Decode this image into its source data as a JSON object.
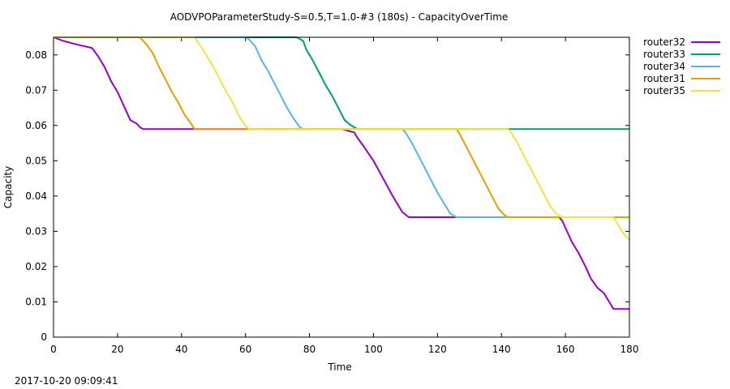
{
  "timestamp": "2017-10-20 09:09:41",
  "chart_data": {
    "type": "line",
    "title": "AODVPOParameterStudy-S=0.5,T=1.0-#3 (180s) - CapacityOverTime",
    "xlabel": "Time",
    "ylabel": "Capacity",
    "xlim": [
      0,
      180
    ],
    "ylim": [
      0,
      0.085
    ],
    "xticks": [
      0,
      20,
      40,
      60,
      80,
      100,
      120,
      140,
      160,
      180
    ],
    "xtick_labels": [
      "0",
      "20",
      "40",
      "60",
      "80",
      "100",
      "120",
      "140",
      "160",
      "180"
    ],
    "yticks": [
      0,
      0.01,
      0.02,
      0.03,
      0.04,
      0.05,
      0.06,
      0.07,
      0.08
    ],
    "ytick_labels": [
      "0",
      "0.01",
      "0.02",
      "0.03",
      "0.04",
      "0.05",
      "0.06",
      "0.07",
      "0.08"
    ],
    "grid": false,
    "legend_position": "outside-top-right",
    "series": [
      {
        "name": "router32",
        "color": "#9400d3",
        "x": [
          0,
          3,
          7,
          12,
          14,
          16,
          18,
          20,
          22,
          24,
          26,
          27,
          28,
          60,
          90,
          94,
          95,
          97,
          100,
          103,
          106,
          109,
          111,
          140,
          158,
          159,
          160,
          162,
          164,
          166,
          168,
          170,
          172,
          174,
          175,
          176,
          178,
          180
        ],
        "y": [
          0.085,
          0.084,
          0.083,
          0.082,
          0.0795,
          0.0765,
          0.0725,
          0.0695,
          0.0655,
          0.0615,
          0.0605,
          0.0595,
          0.059,
          0.059,
          0.059,
          0.058,
          0.0565,
          0.054,
          0.05,
          0.045,
          0.04,
          0.0355,
          0.034,
          0.034,
          0.034,
          0.033,
          0.031,
          0.027,
          0.024,
          0.0205,
          0.0165,
          0.014,
          0.0125,
          0.0095,
          0.008,
          0.008,
          0.008,
          0.008
        ]
      },
      {
        "name": "router33",
        "color": "#009e73",
        "x": [
          0,
          60,
          76,
          78,
          79,
          81,
          83,
          85,
          87,
          89,
          91,
          93,
          95,
          96,
          120,
          150,
          180
        ],
        "y": [
          0.085,
          0.085,
          0.085,
          0.084,
          0.0815,
          0.0785,
          0.075,
          0.0715,
          0.0685,
          0.065,
          0.0615,
          0.06,
          0.059,
          0.059,
          0.059,
          0.059,
          0.059
        ]
      },
      {
        "name": "router34",
        "color": "#56b4e9",
        "x": [
          0,
          60,
          61,
          63,
          65,
          67,
          69,
          71,
          73,
          75,
          77,
          78,
          100,
          109,
          110,
          112,
          114,
          116,
          118,
          120,
          122,
          124,
          126,
          127,
          130,
          140,
          142
        ],
        "y": [
          0.085,
          0.085,
          0.0845,
          0.0825,
          0.0785,
          0.0755,
          0.072,
          0.0685,
          0.065,
          0.062,
          0.0595,
          0.059,
          0.059,
          0.059,
          0.058,
          0.055,
          0.0515,
          0.048,
          0.0445,
          0.041,
          0.038,
          0.035,
          0.034,
          0.034,
          0.034,
          0.034,
          0.034
        ]
      },
      {
        "name": "router31",
        "color": "#e69f00",
        "x": [
          0,
          27,
          29,
          31,
          33,
          35,
          37,
          39,
          41,
          43,
          44,
          60,
          100,
          126,
          127,
          129,
          131,
          133,
          135,
          137,
          139,
          141,
          142,
          160,
          180
        ],
        "y": [
          0.085,
          0.085,
          0.083,
          0.0805,
          0.0765,
          0.073,
          0.0695,
          0.0665,
          0.063,
          0.0605,
          0.059,
          0.059,
          0.059,
          0.059,
          0.0575,
          0.054,
          0.0505,
          0.047,
          0.0435,
          0.04,
          0.0365,
          0.0345,
          0.034,
          0.034,
          0.034
        ]
      },
      {
        "name": "router35",
        "color": "#f0e442",
        "x": [
          0,
          44,
          46,
          48,
          50,
          52,
          54,
          56,
          58,
          60,
          61,
          100,
          142,
          143,
          145,
          147,
          149,
          151,
          153,
          155,
          157,
          159,
          160,
          175,
          176,
          178,
          180
        ],
        "y": [
          0.085,
          0.085,
          0.0825,
          0.0795,
          0.0765,
          0.073,
          0.0695,
          0.0665,
          0.0625,
          0.06,
          0.059,
          0.059,
          0.059,
          0.058,
          0.055,
          0.0515,
          0.048,
          0.0445,
          0.041,
          0.0375,
          0.035,
          0.034,
          0.034,
          0.034,
          0.0325,
          0.0295,
          0.0275
        ]
      }
    ]
  }
}
